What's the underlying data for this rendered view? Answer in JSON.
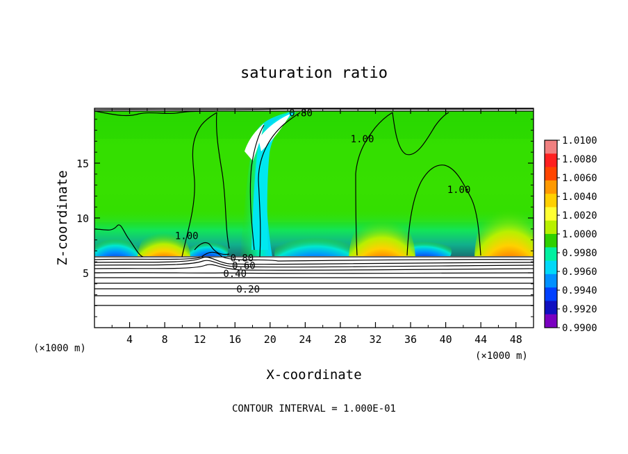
{
  "chart_data": {
    "type": "heatmap",
    "title": "saturation ratio",
    "xlabel": "X-coordinate",
    "ylabel": "Z-coordinate",
    "x_unit": "(×1000 m)",
    "z_unit": "(×1000 m)",
    "xlim": [
      0,
      50
    ],
    "ylim": [
      0,
      20
    ],
    "x_ticks": [
      4,
      8,
      12,
      16,
      20,
      24,
      28,
      32,
      36,
      40,
      44,
      48
    ],
    "y_ticks": [
      5,
      10,
      15
    ],
    "colorbar": {
      "levels": [
        "1.0100",
        "1.0080",
        "1.0060",
        "1.0040",
        "1.0020",
        "1.0000",
        "0.9980",
        "0.9960",
        "0.9940",
        "0.9920",
        "0.9900"
      ],
      "colors": [
        "#f08080",
        "#ff2020",
        "#ff4500",
        "#ff9900",
        "#ffd000",
        "#ffff33",
        "#b8f000",
        "#30d000",
        "#00f0a0",
        "#00d8f8",
        "#0090ff",
        "#0040ff",
        "#1010c0",
        "#7a00c0"
      ]
    },
    "contour_labels": [
      {
        "text": "0.80",
        "x": 23.5,
        "z": 19.6
      },
      {
        "text": "1.00",
        "x": 30.5,
        "z": 17.2
      },
      {
        "text": "1.00",
        "x": 41.5,
        "z": 12.6
      },
      {
        "text": "1.00",
        "x": 10.5,
        "z": 8.4
      },
      {
        "text": "0.80",
        "x": 16.8,
        "z": 6.35
      },
      {
        "text": "0.60",
        "x": 17.0,
        "z": 5.65
      },
      {
        "text": "0.40",
        "x": 16.0,
        "z": 4.95
      },
      {
        "text": "0.20",
        "x": 17.5,
        "z": 3.5
      }
    ],
    "contour_interval_text": "CONTOUR INTERVAL = 1.000E-01"
  }
}
